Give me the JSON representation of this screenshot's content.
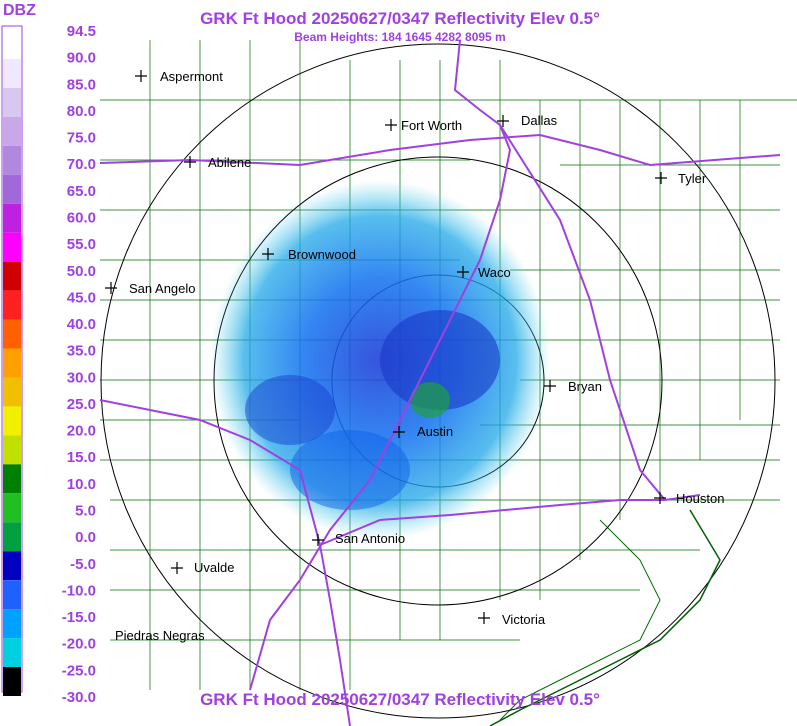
{
  "header": {
    "title": "GRK Ft Hood 20250627/0347 Reflectivity Elev 0.5°",
    "beam_heights": "Beam Heights: 184 1645 4282 8095 m",
    "footer_title": "GRK Ft Hood 20250627/0347 Reflectivity Elev 0.5°"
  },
  "legend": {
    "unit": "DBZ",
    "labels": [
      "94.5",
      "90.0",
      "85.0",
      "80.0",
      "75.0",
      "70.0",
      "65.0",
      "60.0",
      "55.0",
      "50.0",
      "45.0",
      "40.0",
      "35.0",
      "30.0",
      "25.0",
      "20.0",
      "15.0",
      "10.0",
      "5.0",
      "0.0",
      "-5.0",
      "-10.0",
      "-15.0",
      "-20.0",
      "-25.0",
      "-30.0"
    ],
    "colors": [
      "#ffffff",
      "#f0e8ff",
      "#d8c8f0",
      "#c8a8e8",
      "#b088e0",
      "#a068d8",
      "#c020e0",
      "#ff00ff",
      "#d00000",
      "#ff2020",
      "#ff6000",
      "#ffa000",
      "#f0c000",
      "#f0f000",
      "#c0e000",
      "#008000",
      "#20c020",
      "#00a040",
      "#0000c0",
      "#2060ff",
      "#00a0ff",
      "#00d0e0",
      "#000000"
    ]
  },
  "cities": [
    {
      "name": "Aspermont"
    },
    {
      "name": "Fort Worth"
    },
    {
      "name": "Dallas"
    },
    {
      "name": "Abilene"
    },
    {
      "name": "Tyler"
    },
    {
      "name": "Brownwood"
    },
    {
      "name": "Waco"
    },
    {
      "name": "San Angelo"
    },
    {
      "name": "Bryan"
    },
    {
      "name": "Austin"
    },
    {
      "name": "Houston"
    },
    {
      "name": "San Antonio"
    },
    {
      "name": "Uvalde"
    },
    {
      "name": "Victoria"
    },
    {
      "name": "Piedras Negras"
    }
  ],
  "colors": {
    "title": "#a040e0",
    "county_lines": "#007000",
    "highways": "#a040e0",
    "range_rings": "#000000"
  }
}
